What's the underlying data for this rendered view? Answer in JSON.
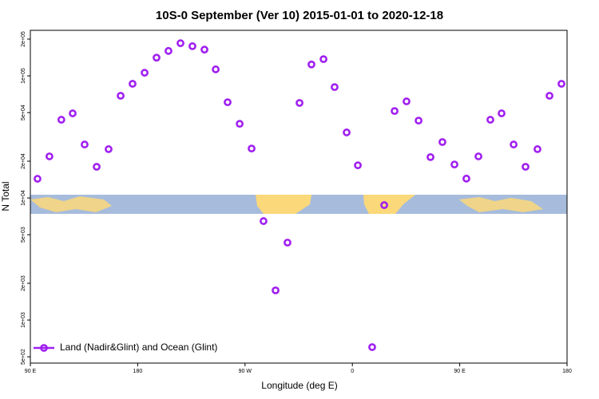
{
  "chart_data": {
    "type": "scatter",
    "title": "10S-0 September (Ver 10)   2015-01-01 to 2020-12-18",
    "x_label": "Longitude (deg E)",
    "y_label": "N Total",
    "log_y": true,
    "legend": "bottomleft",
    "xlim": [
      90,
      540
    ],
    "xticks": [
      {
        "value": 90,
        "label": "90 E"
      },
      {
        "value": 180,
        "label": "180"
      },
      {
        "value": 270,
        "label": "90 W"
      },
      {
        "value": 360,
        "label": "0"
      },
      {
        "value": 450,
        "label": "90 E"
      },
      {
        "value": 540,
        "label": "180"
      }
    ],
    "ylim": [
      444,
      236000
    ],
    "yticks": [
      {
        "value": 500,
        "label": "5e+02"
      },
      {
        "value": 1000,
        "label": "1e+03"
      },
      {
        "value": 2000,
        "label": "2e+03"
      },
      {
        "value": 5000,
        "label": "5e+03"
      },
      {
        "value": 10000,
        "label": "1e+04"
      },
      {
        "value": 20000,
        "label": "2e+04"
      },
      {
        "value": 50000,
        "label": "5e+04"
      },
      {
        "value": 100000,
        "label": "1e+05"
      },
      {
        "value": 200000,
        "label": "2e+05"
      }
    ],
    "series": [
      {
        "name": "Land (Nadir&Glint) and Ocean (Glint)",
        "color": "#a020f0",
        "x": [
          96,
          106,
          116,
          125.5,
          135.5,
          145.6,
          155.6,
          165.7,
          175.7,
          185.8,
          195.8,
          205.8,
          215.9,
          225.9,
          236,
          245.4,
          255.4,
          265.5,
          275.5,
          285.5,
          295.6,
          305.6,
          315.7,
          325.7,
          335.8,
          345.1,
          355.2,
          364.6,
          376.6,
          386.7,
          395.4,
          405.4,
          415.5,
          425.5,
          435.5,
          445.6,
          455.6,
          465.7,
          475.7,
          485.1,
          495.2,
          505.2,
          515.2,
          525.3,
          535.3
        ],
        "values": [
          14350,
          21900,
          43700,
          49300,
          27400,
          18000,
          25100,
          68700,
          86100,
          106000,
          141000,
          160000,
          185000,
          175000,
          164000,
          113000,
          60800,
          40500,
          25400,
          6460,
          1750,
          4310,
          60000,
          124000,
          137000,
          80900,
          34400,
          18500,
          600,
          8730,
          51500,
          61800,
          43000,
          21600,
          28700,
          18800,
          14400,
          21900,
          43700,
          49300,
          27400,
          18000,
          25100,
          68700,
          86100
        ]
      }
    ]
  }
}
